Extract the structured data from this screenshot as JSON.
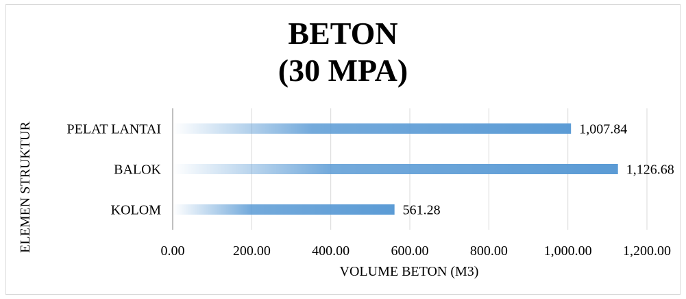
{
  "chart_data": {
    "type": "bar",
    "orientation": "horizontal",
    "title_lines": [
      "BETON",
      "(30 MPA)"
    ],
    "xlabel": "VOLUME BETON (M3)",
    "ylabel": "ELEMEN STRUKTUR",
    "categories": [
      "PELAT LANTAI",
      "BALOK",
      "KOLOM"
    ],
    "values": [
      1007.84,
      1126.68,
      561.28
    ],
    "value_labels": [
      "1,007.84",
      "1,126.68",
      "561.28"
    ],
    "xlim": [
      0,
      1200
    ],
    "x_ticks": [
      0,
      200,
      400,
      600,
      800,
      1000,
      1200
    ],
    "x_tick_labels": [
      "0.00",
      "200.00",
      "400.00",
      "600.00",
      "800.00",
      "1,000.00",
      "1,200.00"
    ],
    "grid": "vertical",
    "legend": "none",
    "bar_color": "#5b9bd5"
  }
}
